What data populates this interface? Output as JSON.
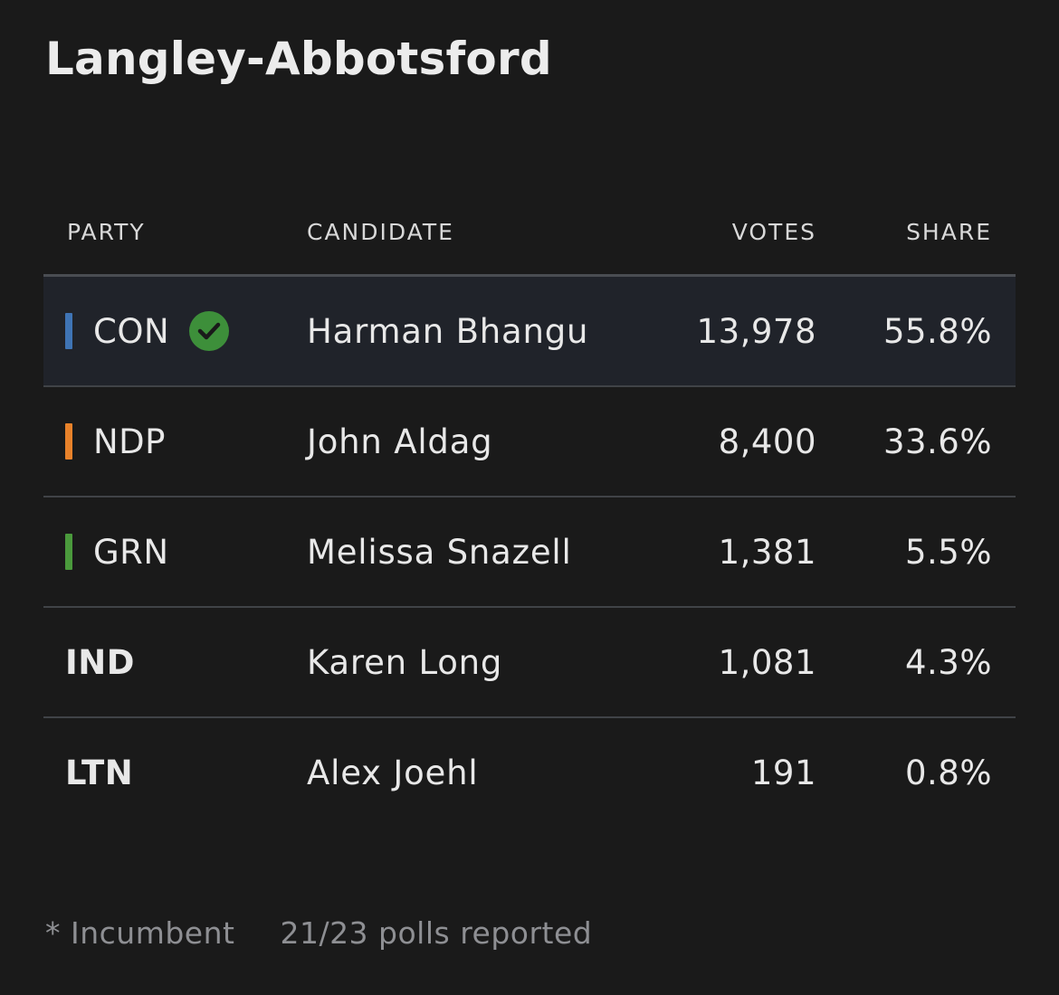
{
  "title": "Langley-Abbotsford",
  "columns": {
    "party": "PARTY",
    "candidate": "CANDIDATE",
    "votes": "VOTES",
    "share": "SHARE"
  },
  "rows": [
    {
      "party": "CON",
      "candidate": "Harman Bhangu",
      "votes": "13,978",
      "share": "55.8%",
      "color": "#3f74b5",
      "winner": true,
      "icon": "check-circle-icon"
    },
    {
      "party": "NDP",
      "candidate": "John Aldag",
      "votes": "8,400",
      "share": "33.6%",
      "color": "#e8822a",
      "winner": false
    },
    {
      "party": "GRN",
      "candidate": "Melissa Snazell",
      "votes": "1,381",
      "share": "5.5%",
      "color": "#4a9a3c",
      "winner": false
    },
    {
      "party": "IND",
      "candidate": "Karen Long",
      "votes": "1,081",
      "share": "4.3%",
      "color": null,
      "winner": false
    },
    {
      "party": "LTN",
      "candidate": "Alex Joehl",
      "votes": "191",
      "share": "0.8%",
      "color": null,
      "winner": false
    }
  ],
  "colors": {
    "winner_check": "#3d8f3a",
    "winner_row_bg": "#20232a"
  },
  "footer": {
    "incumbent_note": "* Incumbent",
    "polls": "21/23 polls reported"
  }
}
